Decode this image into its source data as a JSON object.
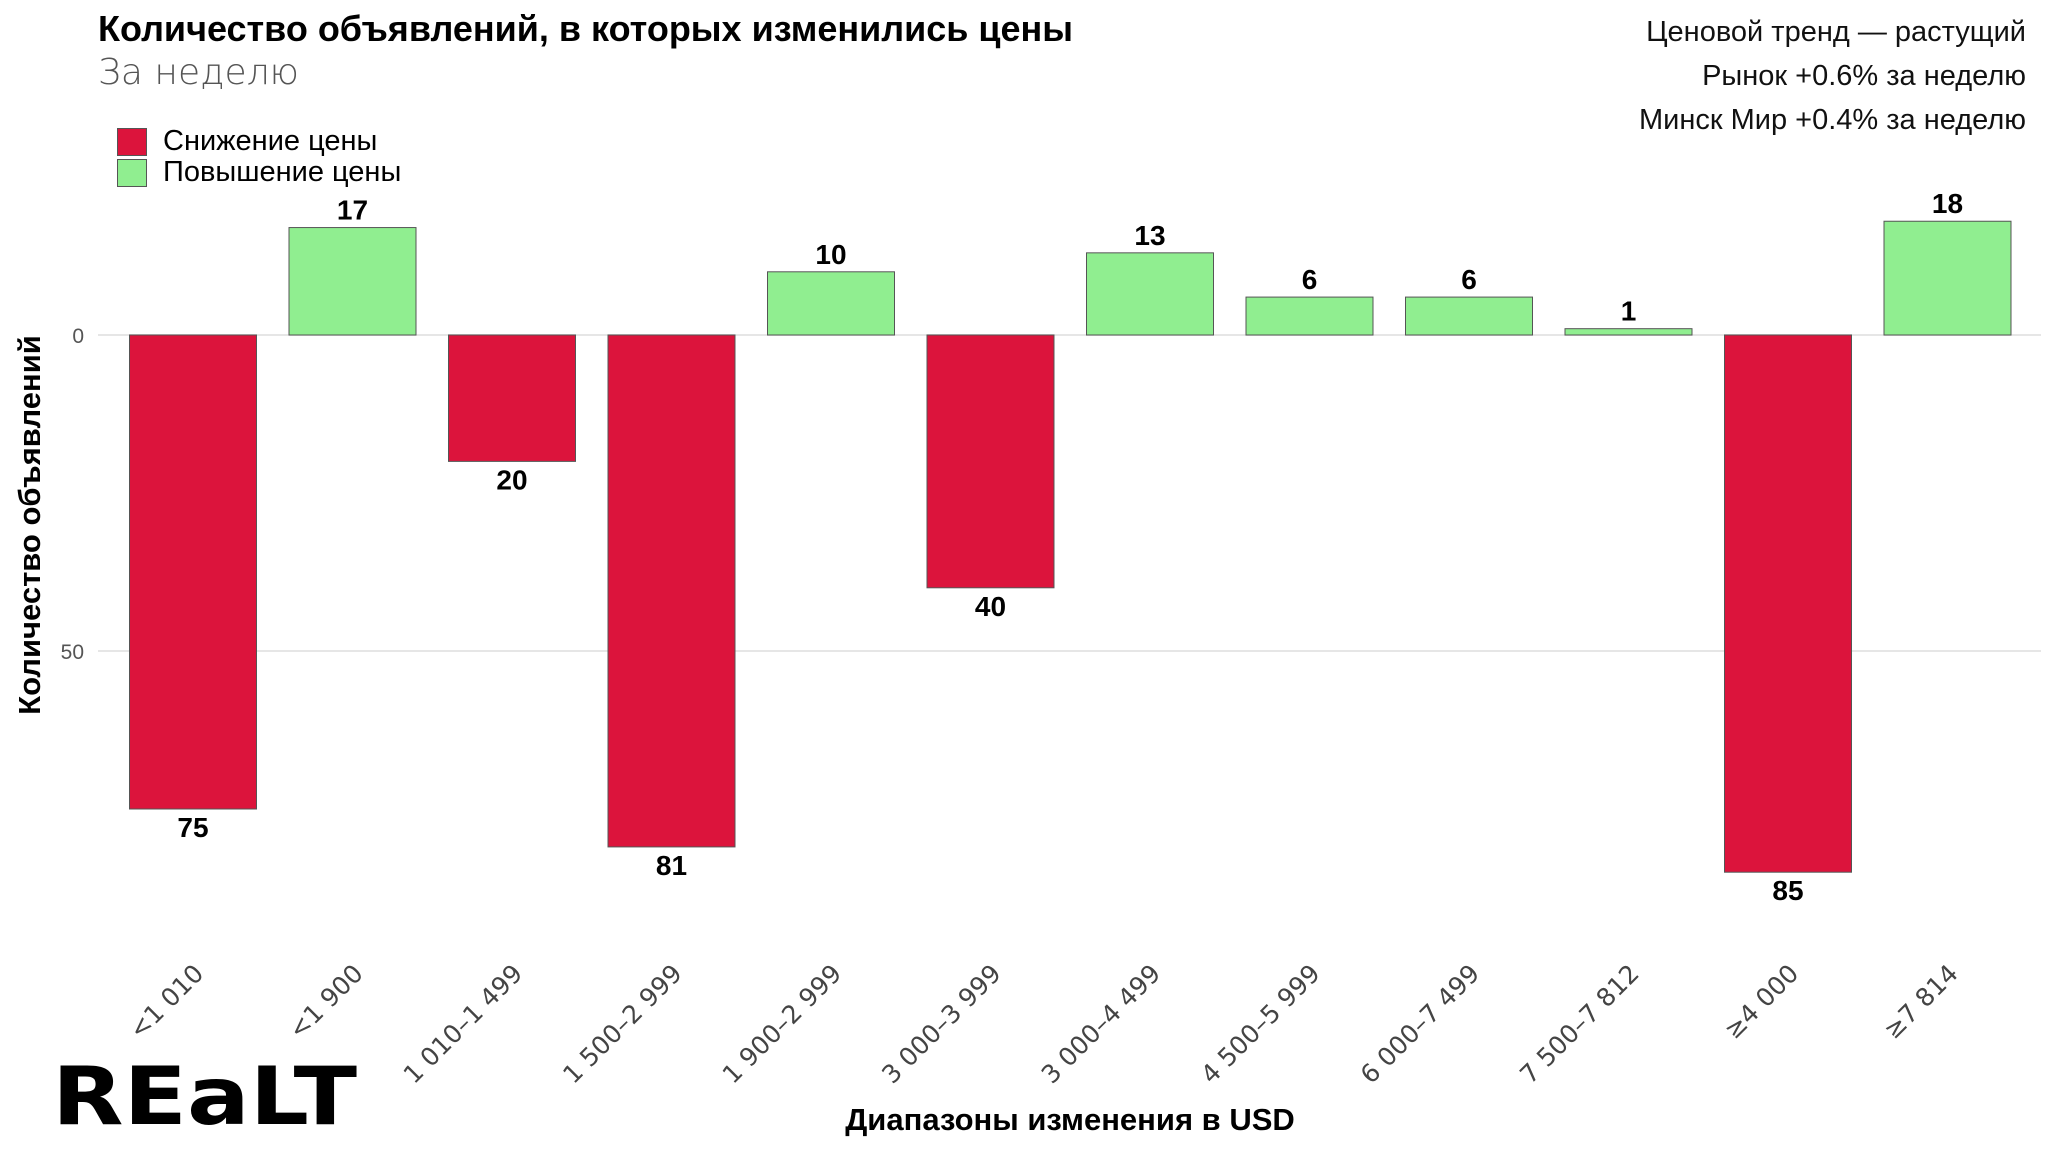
{
  "chart_data": {
    "type": "bar",
    "title": "Количество объявлений, в которых изменились цены",
    "subtitle": "За неделю",
    "xlabel": "Диапазоны изменения в USD",
    "ylabel": "Количество объявлений",
    "y_ticks": [
      {
        "value": 0,
        "label": "0"
      },
      {
        "value": -50,
        "label": "50"
      }
    ],
    "ylim": [
      -95,
      25
    ],
    "grid": true,
    "legend_position": "top-left",
    "legend": [
      {
        "name": "Снижение цены",
        "color": "#DC143C"
      },
      {
        "name": "Повышение цены",
        "color": "#90EE90"
      }
    ],
    "categories": [
      "<1 010",
      "<1 900",
      "1 010–1 499",
      "1 500–2 999",
      "1 900–2 999",
      "3 000–3 999",
      "3 000–4 499",
      "4 500–5 999",
      "6 000–7 499",
      "7 500–7 812",
      "≥4 000",
      "≥7 814"
    ],
    "values": [
      -75,
      17,
      -20,
      -81,
      10,
      -40,
      13,
      6,
      6,
      1,
      -85,
      18
    ],
    "labels": [
      "75",
      "17",
      "20",
      "81",
      "10",
      "40",
      "13",
      "6",
      "6",
      "1",
      "85",
      "18"
    ],
    "series_of_bar": [
      "Снижение цены",
      "Повышение цены",
      "Снижение цены",
      "Снижение цены",
      "Повышение цены",
      "Снижение цены",
      "Повышение цены",
      "Повышение цены",
      "Повышение цены",
      "Повышение цены",
      "Снижение цены",
      "Повышение цены"
    ],
    "annotations": [
      "Ценовой тренд — растущий",
      "Рынок +0.6% за неделю",
      "Минск Мир +0.4% за неделю"
    ]
  },
  "logo_text": "REALT"
}
